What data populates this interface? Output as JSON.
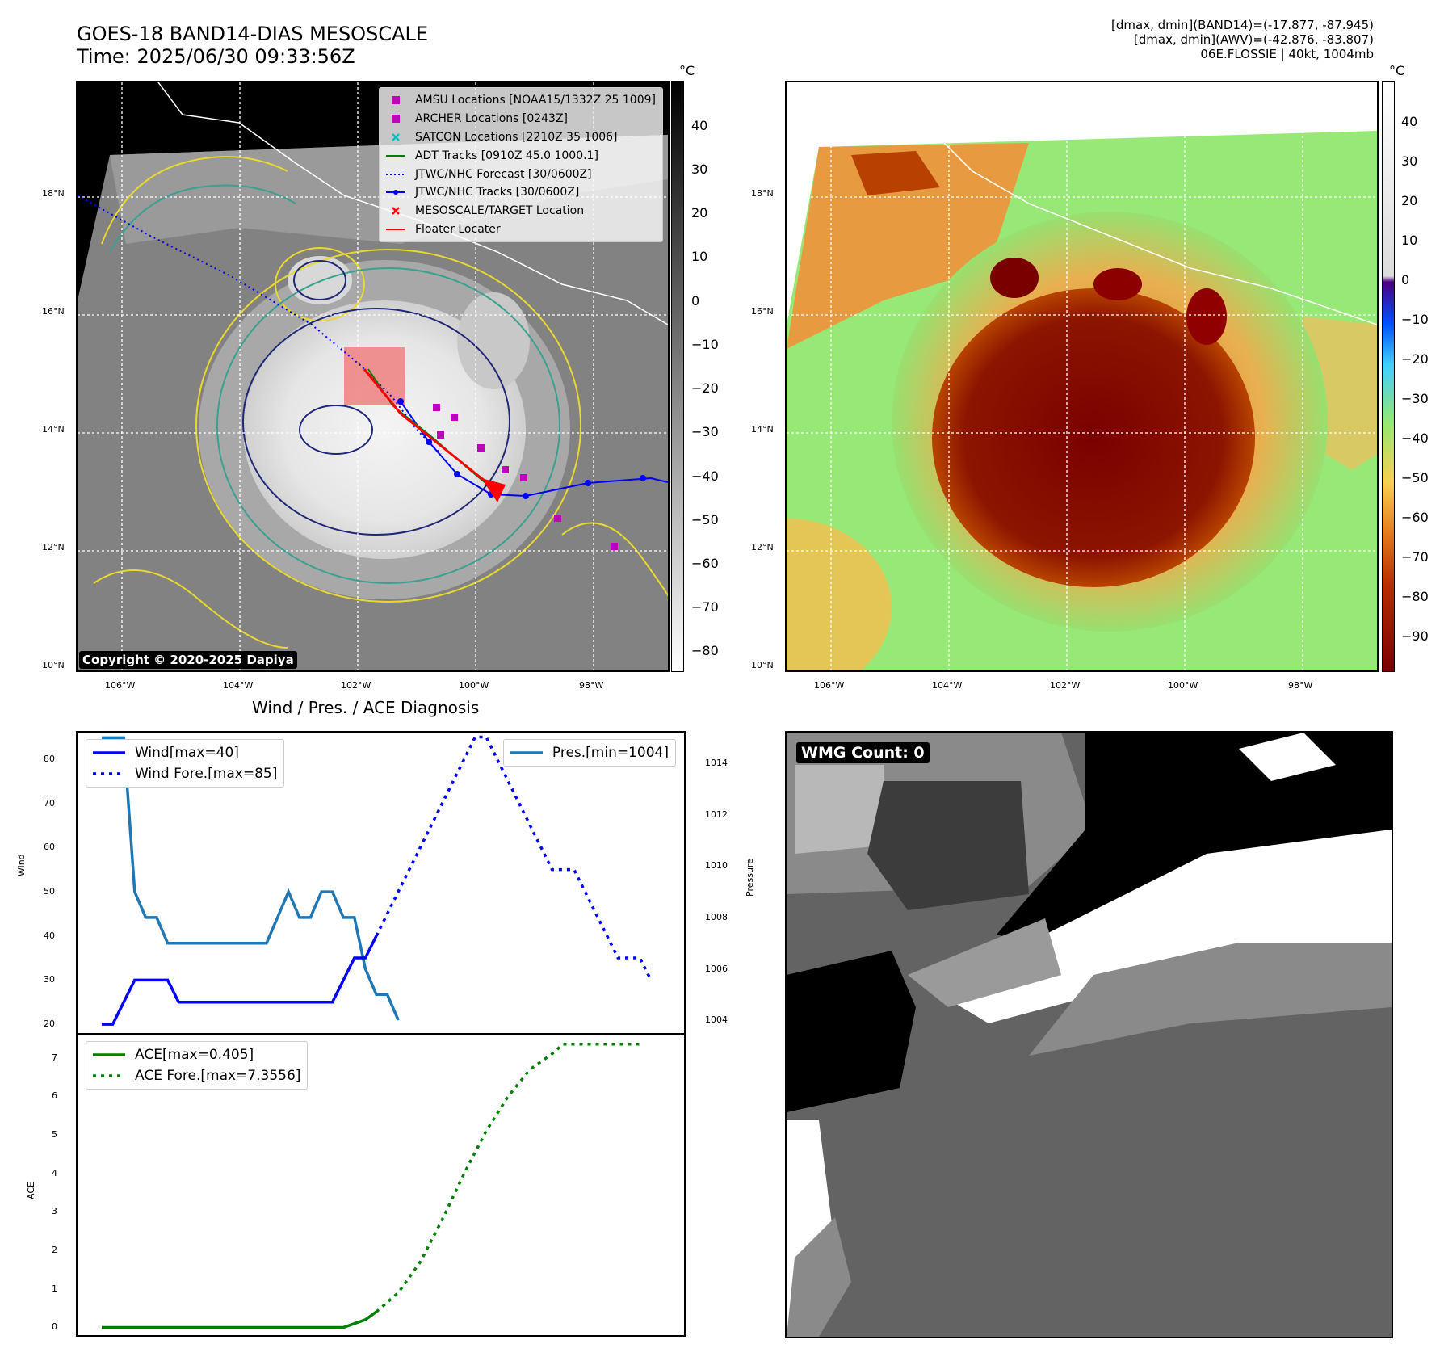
{
  "header": {
    "title_line1": "GOES-18 BAND14-DIAS MESOSCALE",
    "title_line2": "Time: 2025/06/30 09:33:56Z",
    "info_line1": "[dmax, dmin](BAND14)=(-17.877, -87.945)",
    "info_line2": "[dmax, dmin](AWV)=(-42.876, -83.807)",
    "info_line3": "06E.FLOSSIE | 40kt, 1004mb"
  },
  "map_axes": {
    "lat_labels": [
      "18°N",
      "16°N",
      "14°N",
      "12°N",
      "10°N"
    ],
    "lon_labels": [
      "106°W",
      "104°W",
      "102°W",
      "100°W",
      "98°W"
    ]
  },
  "ir_map": {
    "legend": [
      {
        "label": "AMSU Locations [NOAA15/1332Z 25 1009]",
        "symbol": "square",
        "color": "#bf00bf"
      },
      {
        "label": "ARCHER Locations [0243Z]",
        "symbol": "square",
        "color": "#bf00bf"
      },
      {
        "label": "SATCON Locations [2210Z 35 1006]",
        "symbol": "x",
        "color": "#00bfbf"
      },
      {
        "label": "ADT Tracks [0910Z 45.0 1000.1]",
        "symbol": "line",
        "color": "#008000"
      },
      {
        "label": "JTWC/NHC Forecast [30/0600Z]",
        "symbol": "dotted",
        "color": "#0000ff"
      },
      {
        "label": "JTWC/NHC Tracks [30/0600Z]",
        "symbol": "line-dot",
        "color": "#0000ff"
      },
      {
        "label": "MESOSCALE/TARGET Location",
        "symbol": "x",
        "color": "#ff0000"
      },
      {
        "label": "Floater Locater",
        "symbol": "line",
        "color": "#ff0000"
      }
    ],
    "copyright": "Copyright © 2020-2025 Dapiya",
    "colorbar_unit": "°C",
    "colorbar_ticks": [
      "40",
      "30",
      "20",
      "10",
      "0",
      "−10",
      "−20",
      "−30",
      "−40",
      "−50",
      "−60",
      "−70",
      "−80"
    ]
  },
  "awv_map": {
    "colorbar_unit": "°C",
    "colorbar_ticks": [
      "40",
      "30",
      "20",
      "10",
      "0",
      "−10",
      "−20",
      "−30",
      "−40",
      "−50",
      "−60",
      "−70",
      "−80",
      "−90"
    ]
  },
  "diagnosis": {
    "title": "Wind / Pres. / ACE Diagnosis",
    "wind_ylabel": "Wind",
    "pres_ylabel": "Pressure",
    "ace_ylabel": "ACE",
    "wind_legend": [
      {
        "label": "Wind[max=40]",
        "style": "solid",
        "color": "#0000ff"
      },
      {
        "label": "Wind Fore.[max=85]",
        "style": "dotted",
        "color": "#0000ff"
      }
    ],
    "pres_legend": [
      {
        "label": "Pres.[min=1004]",
        "style": "solid",
        "color": "#1f77b4"
      }
    ],
    "ace_legend": [
      {
        "label": "ACE[max=0.405]",
        "style": "solid",
        "color": "#008000"
      },
      {
        "label": "ACE Fore.[max=7.3556]",
        "style": "dotted",
        "color": "#008000"
      }
    ],
    "wind_ticks": [
      "80",
      "70",
      "60",
      "50",
      "40",
      "30",
      "20"
    ],
    "pres_ticks": [
      "1014",
      "1012",
      "1010",
      "1008",
      "1006",
      "1004"
    ],
    "ace_ticks": [
      "7",
      "6",
      "5",
      "4",
      "3",
      "2",
      "1",
      "0"
    ]
  },
  "wmg": {
    "label": "WMG Count: 0"
  },
  "chart_data": [
    {
      "type": "line",
      "title": "Wind / Pres. / ACE Diagnosis",
      "ylabel": "Wind",
      "ylim": [
        18,
        86
      ],
      "x": [
        0,
        1,
        2,
        3,
        4,
        5,
        6,
        7,
        8,
        9,
        10,
        11,
        12,
        13,
        14,
        15,
        16,
        17,
        18,
        19,
        20,
        21,
        22,
        23,
        24,
        25,
        26,
        27,
        28,
        29
      ],
      "series": [
        {
          "name": "Wind[max=40]",
          "style": "solid",
          "color": "#0000ff",
          "points": [
            [
              0,
              20
            ],
            [
              1,
              20
            ],
            [
              2,
              25
            ],
            [
              3,
              30
            ],
            [
              4,
              30
            ],
            [
              5,
              30
            ],
            [
              6,
              30
            ],
            [
              7,
              25
            ],
            [
              8,
              25
            ],
            [
              9,
              25
            ],
            [
              10,
              25
            ],
            [
              11,
              25
            ],
            [
              12,
              25
            ],
            [
              13,
              25
            ],
            [
              14,
              25
            ],
            [
              15,
              25
            ],
            [
              16,
              25
            ],
            [
              17,
              25
            ],
            [
              18,
              25
            ],
            [
              19,
              25
            ],
            [
              20,
              25
            ],
            [
              21,
              25
            ],
            [
              22,
              30
            ],
            [
              23,
              35
            ],
            [
              24,
              35
            ],
            [
              25,
              40
            ]
          ]
        },
        {
          "name": "Wind Fore.[max=85]",
          "style": "dotted",
          "color": "#0000ff",
          "points": [
            [
              25,
              40
            ],
            [
              26,
              45
            ],
            [
              27,
              50
            ],
            [
              28,
              55
            ],
            [
              29,
              60
            ],
            [
              30,
              65
            ],
            [
              31,
              70
            ],
            [
              32,
              75
            ],
            [
              33,
              80
            ],
            [
              34,
              85
            ],
            [
              35,
              85
            ],
            [
              36,
              80
            ],
            [
              37,
              75
            ],
            [
              38,
              70
            ],
            [
              39,
              65
            ],
            [
              40,
              60
            ],
            [
              41,
              55
            ],
            [
              42,
              55
            ],
            [
              43,
              55
            ],
            [
              44,
              50
            ],
            [
              45,
              45
            ],
            [
              46,
              40
            ],
            [
              47,
              35
            ],
            [
              48,
              35
            ],
            [
              49,
              35
            ],
            [
              50,
              30
            ]
          ]
        }
      ]
    },
    {
      "type": "line",
      "ylabel": "Pressure",
      "ylim": [
        1003.5,
        1015.2
      ],
      "series": [
        {
          "name": "Pres.[min=1004]",
          "style": "solid",
          "color": "#1f77b4",
          "points": [
            [
              0,
              1015
            ],
            [
              1,
              1015
            ],
            [
              2,
              1015
            ],
            [
              3,
              1009
            ],
            [
              4,
              1008
            ],
            [
              5,
              1008
            ],
            [
              6,
              1007
            ],
            [
              7,
              1007
            ],
            [
              8,
              1007
            ],
            [
              9,
              1007
            ],
            [
              10,
              1007
            ],
            [
              11,
              1007
            ],
            [
              12,
              1007
            ],
            [
              13,
              1007
            ],
            [
              14,
              1007
            ],
            [
              15,
              1007
            ],
            [
              16,
              1008
            ],
            [
              17,
              1009
            ],
            [
              18,
              1008
            ],
            [
              19,
              1008
            ],
            [
              20,
              1009
            ],
            [
              21,
              1009
            ],
            [
              22,
              1008
            ],
            [
              23,
              1008
            ],
            [
              24,
              1006
            ],
            [
              25,
              1005
            ],
            [
              26,
              1005
            ],
            [
              27,
              1004
            ]
          ]
        }
      ]
    },
    {
      "type": "line",
      "ylabel": "ACE",
      "ylim": [
        -0.2,
        7.6
      ],
      "series": [
        {
          "name": "ACE[max=0.405]",
          "style": "solid",
          "color": "#008000",
          "points": [
            [
              0,
              0
            ],
            [
              22,
              0
            ],
            [
              23,
              0.1
            ],
            [
              24,
              0.2
            ],
            [
              25,
              0.405
            ]
          ]
        },
        {
          "name": "ACE Fore.[max=7.3556]",
          "style": "dotted",
          "color": "#008000",
          "points": [
            [
              25,
              0.405
            ],
            [
              27,
              0.9
            ],
            [
              29,
              1.7
            ],
            [
              31,
              2.8
            ],
            [
              33,
              4.0
            ],
            [
              35,
              5.1
            ],
            [
              37,
              6.0
            ],
            [
              39,
              6.7
            ],
            [
              41,
              7.1
            ],
            [
              42,
              7.3556
            ],
            [
              46,
              7.3556
            ],
            [
              49,
              7.3556
            ]
          ]
        }
      ]
    }
  ]
}
